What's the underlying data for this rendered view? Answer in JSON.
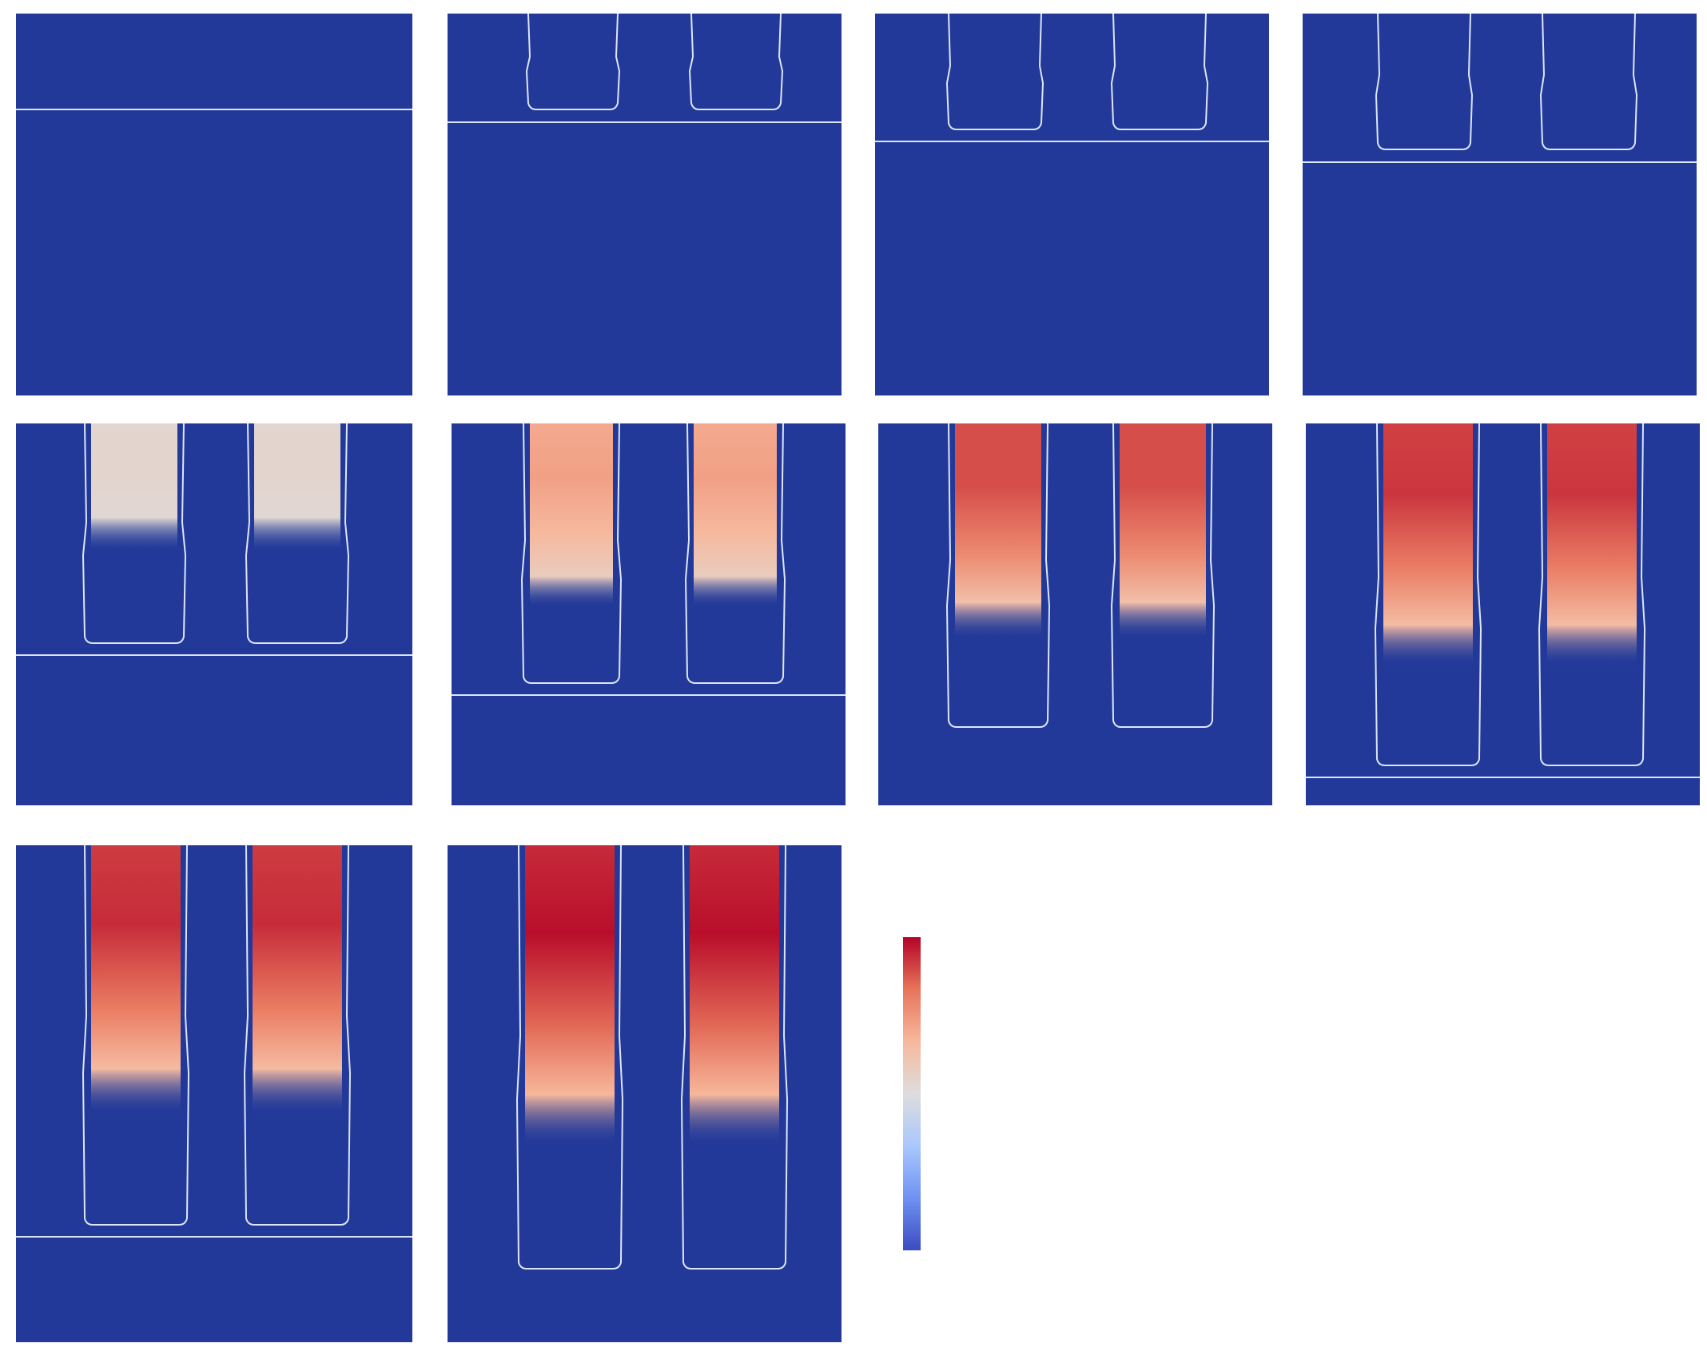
{
  "figure": {
    "panel_count": 10,
    "background_color": "#22399a",
    "interface_color": "#dce6f5",
    "colormap": [
      "#3b4cc0",
      "#6f92f3",
      "#aac7fd",
      "#dddddd",
      "#f7b89c",
      "#e7745b",
      "#b40426"
    ],
    "colorbar": {
      "orientation": "vertical",
      "tick_labels": []
    },
    "panels": [
      {
        "id": "panel-1",
        "row": 1,
        "col": 1,
        "channels_visible": false,
        "heat_intensity": 0.0
      },
      {
        "id": "panel-2",
        "row": 1,
        "col": 2,
        "channels_visible": true,
        "heat_intensity": 0.0
      },
      {
        "id": "panel-3",
        "row": 1,
        "col": 3,
        "channels_visible": true,
        "heat_intensity": 0.0
      },
      {
        "id": "panel-4",
        "row": 1,
        "col": 4,
        "channels_visible": true,
        "heat_intensity": 0.0
      },
      {
        "id": "panel-5",
        "row": 2,
        "col": 1,
        "channels_visible": true,
        "heat_intensity": 0.08
      },
      {
        "id": "panel-6",
        "row": 2,
        "col": 2,
        "channels_visible": true,
        "heat_intensity": 0.45
      },
      {
        "id": "panel-7",
        "row": 2,
        "col": 3,
        "channels_visible": true,
        "heat_intensity": 0.78
      },
      {
        "id": "panel-8",
        "row": 2,
        "col": 4,
        "channels_visible": true,
        "heat_intensity": 0.85
      },
      {
        "id": "panel-9",
        "row": 3,
        "col": 1,
        "channels_visible": true,
        "heat_intensity": 0.88
      },
      {
        "id": "panel-10",
        "row": 3,
        "col": 2,
        "channels_visible": true,
        "heat_intensity": 0.97
      }
    ]
  }
}
